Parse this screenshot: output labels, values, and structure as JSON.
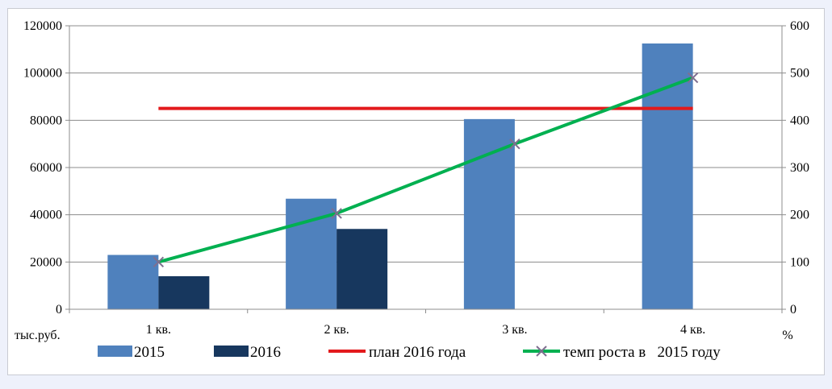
{
  "chart_data": {
    "type": "bar",
    "categories": [
      "1 кв.",
      "2 кв.",
      "3 кв.",
      "4 кв."
    ],
    "series": [
      {
        "name": "2015",
        "type": "bar",
        "axis": "left",
        "color": "#4f81bd",
        "values": [
          23000,
          46800,
          80500,
          112500
        ]
      },
      {
        "name": "2016",
        "type": "bar",
        "axis": "left",
        "color": "#17375e",
        "values": [
          14000,
          34000,
          null,
          null
        ]
      },
      {
        "name": "план 2016 года",
        "type": "line",
        "axis": "left",
        "color": "#e31a1c",
        "values": [
          85000,
          85000,
          85000,
          85000
        ]
      },
      {
        "name": "темп роста в   2015 году",
        "type": "line",
        "axis": "right",
        "color": "#00b050",
        "marker": "x",
        "marker_color": "#7f6f8f",
        "values": [
          100,
          203,
          350,
          490
        ]
      }
    ],
    "y_left": {
      "label": "тыс.руб.",
      "min": 0,
      "max": 120000,
      "ticks": [
        0,
        20000,
        40000,
        60000,
        80000,
        100000,
        120000
      ]
    },
    "y_right": {
      "label": "%",
      "min": 0,
      "max": 600,
      "ticks": [
        0,
        100,
        200,
        300,
        400,
        500,
        600
      ]
    },
    "grid": true,
    "legend_position": "bottom"
  }
}
